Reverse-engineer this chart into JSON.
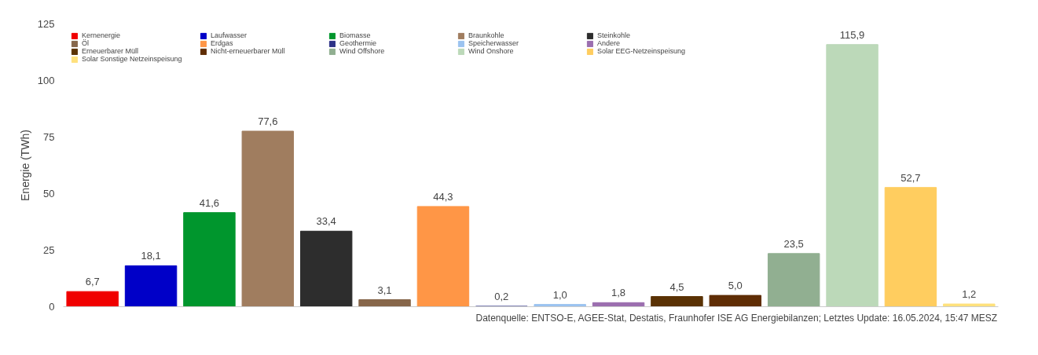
{
  "chart_data": {
    "type": "bar",
    "ylabel": "Energie (TWh)",
    "categories": [
      null
    ],
    "series": [
      {
        "name": "Kernenergie",
        "color": "#f00000",
        "values": [
          6.7
        ],
        "value_labels": [
          "6,7"
        ]
      },
      {
        "name": "Laufwasser",
        "color": "#0000c8",
        "values": [
          18.1
        ],
        "value_labels": [
          "18,1"
        ]
      },
      {
        "name": "Biomasse",
        "color": "#00962d",
        "values": [
          41.6
        ],
        "value_labels": [
          "41,6"
        ]
      },
      {
        "name": "Braunkohle",
        "color": "#a07d5f",
        "values": [
          77.6
        ],
        "value_labels": [
          "77,6"
        ]
      },
      {
        "name": "Steinkohle",
        "color": "#2d2d2d",
        "values": [
          33.4
        ],
        "value_labels": [
          "33,4"
        ]
      },
      {
        "name": "Öl",
        "color": "#86664a",
        "values": [
          3.1
        ],
        "value_labels": [
          "3,1"
        ]
      },
      {
        "name": "Erdgas",
        "color": "#ff9646",
        "values": [
          44.3
        ],
        "value_labels": [
          "44,3"
        ]
      },
      {
        "name": "Geothermie",
        "color": "#2d3287",
        "values": [
          0.2
        ],
        "value_labels": [
          "0,2"
        ]
      },
      {
        "name": "Speicherwasser",
        "color": "#9bc3f0",
        "values": [
          1.0
        ],
        "value_labels": [
          "1,0"
        ]
      },
      {
        "name": "Andere",
        "color": "#9b6eaf",
        "values": [
          1.8
        ],
        "value_labels": [
          "1,8"
        ]
      },
      {
        "name": "Erneuerbarer Müll",
        "color": "#5a3205",
        "values": [
          4.5
        ],
        "value_labels": [
          "4,5"
        ]
      },
      {
        "name": "Nicht-erneuerbarer Müll",
        "color": "#5f2d05",
        "values": [
          5.0
        ],
        "value_labels": [
          "5,0"
        ]
      },
      {
        "name": "Wind Offshore",
        "color": "#91af91",
        "values": [
          23.5
        ],
        "value_labels": [
          "23,5"
        ]
      },
      {
        "name": "Wind Onshore",
        "color": "#bcd9b9",
        "values": [
          115.9
        ],
        "value_labels": [
          "115,9"
        ]
      },
      {
        "name": "Solar EEG-Netzeinspeisung",
        "color": "#ffcd5f",
        "values": [
          52.7
        ],
        "value_labels": [
          "52,7"
        ]
      },
      {
        "name": "Solar Sonstige Netzeinspeisung",
        "color": "#ffe17d",
        "values": [
          1.2
        ],
        "value_labels": [
          "1,2"
        ]
      }
    ],
    "ylim": [
      0,
      125
    ],
    "yticks": [
      0,
      25,
      50,
      75,
      100,
      125
    ],
    "grid": false,
    "legend": "top left",
    "tick_labels": "y",
    "annotations": [
      "Datenquelle: ENTSO-E, AGEE-Stat, Destatis, Fraunhofer ISE AG Energiebilanzen; Letztes Update: 16.05.2024, 15:47 MESZ"
    ]
  }
}
